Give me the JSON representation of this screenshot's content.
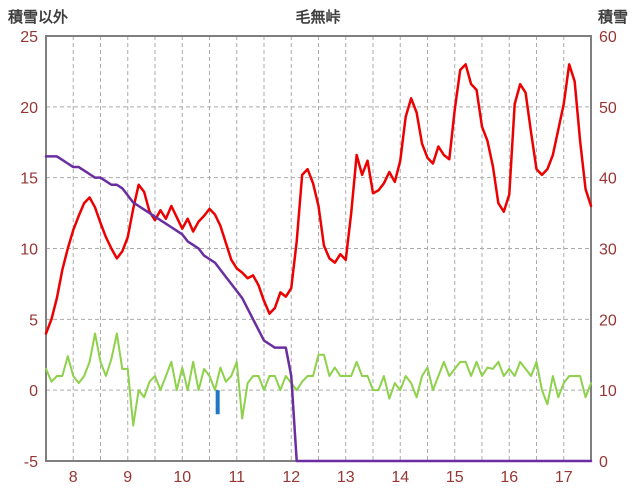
{
  "page": {
    "title": "毛無峠"
  },
  "chart_data": {
    "type": "line",
    "title": "毛無峠",
    "left_axis": {
      "label": "積雪以外",
      "min": -5,
      "max": 25,
      "ticks": [
        25,
        20,
        15,
        10,
        5,
        0,
        -5
      ]
    },
    "right_axis": {
      "label": "積雪",
      "min": 0,
      "max": 60,
      "ticks": [
        60,
        50,
        40,
        30,
        20,
        10,
        0
      ]
    },
    "x_range": [
      7.5,
      17.5
    ],
    "x_step": 0.1,
    "x_ticks": [
      8,
      9,
      10,
      11,
      12,
      13,
      14,
      15,
      16,
      17
    ],
    "x_grid_step": 0.5,
    "grid": "dashed",
    "legend": "none",
    "series": [
      {
        "name": "green",
        "axis": "left",
        "color": "#8ed14b",
        "width": 2,
        "y": [
          1.5,
          0.6,
          1.0,
          1.0,
          2.4,
          1.0,
          0.5,
          1.0,
          2.0,
          4.0,
          2.0,
          1.0,
          2.2,
          4.0,
          1.5,
          1.5,
          -2.5,
          0.0,
          -0.5,
          0.6,
          1.0,
          0.0,
          1.0,
          2.0,
          0.0,
          1.6,
          0.0,
          2.0,
          0.0,
          1.5,
          1.0,
          0.0,
          1.6,
          0.6,
          1.0,
          2.0,
          -2.0,
          0.5,
          1.0,
          1.0,
          0.0,
          1.0,
          1.0,
          0.0,
          1.0,
          0.5,
          0.0,
          0.6,
          1.0,
          1.0,
          2.5,
          2.5,
          1.0,
          1.6,
          1.0,
          1.0,
          1.0,
          2.0,
          1.0,
          1.0,
          0.0,
          0.0,
          1.0,
          -0.6,
          0.5,
          0.0,
          1.0,
          0.5,
          -0.5,
          1.0,
          1.6,
          0.0,
          1.0,
          2.0,
          1.0,
          1.5,
          2.0,
          2.0,
          1.0,
          2.0,
          1.0,
          1.6,
          1.5,
          2.0,
          1.0,
          1.5,
          1.0,
          2.0,
          1.5,
          1.0,
          2.0,
          0.0,
          -1.0,
          1.0,
          -0.5,
          0.5,
          1.0,
          1.0,
          1.0,
          -0.5,
          0.5
        ]
      },
      {
        "name": "red",
        "axis": "left",
        "color": "#ec0000",
        "width": 2.5,
        "y": [
          4.0,
          5.0,
          6.5,
          8.5,
          10.0,
          11.3,
          12.3,
          13.2,
          13.6,
          12.9,
          11.8,
          10.8,
          10.0,
          9.3,
          9.8,
          10.8,
          12.8,
          14.5,
          14.0,
          12.6,
          12.0,
          12.7,
          12.1,
          13.0,
          12.2,
          11.4,
          12.1,
          11.2,
          11.9,
          12.3,
          12.8,
          12.4,
          11.6,
          10.4,
          9.2,
          8.6,
          8.3,
          7.9,
          8.1,
          7.4,
          6.3,
          5.4,
          5.8,
          6.9,
          6.6,
          7.2,
          10.5,
          15.2,
          15.6,
          14.6,
          13.0,
          10.2,
          9.3,
          9.0,
          9.6,
          9.2,
          12.5,
          16.6,
          15.2,
          16.2,
          13.9,
          14.1,
          14.6,
          15.4,
          14.7,
          16.2,
          19.3,
          20.6,
          19.6,
          17.4,
          16.4,
          16.0,
          17.2,
          16.6,
          16.3,
          19.8,
          22.6,
          23.0,
          21.6,
          21.2,
          18.6,
          17.6,
          15.8,
          13.2,
          12.6,
          13.8,
          20.2,
          21.6,
          21.0,
          18.2,
          15.6,
          15.2,
          15.6,
          16.6,
          18.4,
          20.2,
          23.0,
          21.8,
          17.6,
          14.2,
          13.0
        ]
      },
      {
        "name": "purple-snow",
        "axis": "right",
        "color": "#6a2ea0",
        "width": 2.5,
        "y": [
          43,
          43,
          43,
          42.5,
          42,
          41.5,
          41.5,
          41,
          40.5,
          40,
          40,
          39.5,
          39,
          39,
          38.5,
          37.5,
          36.5,
          36,
          35.5,
          35,
          34.5,
          34,
          33.5,
          33,
          32.5,
          32,
          31,
          30.5,
          30,
          29,
          28.5,
          28,
          27,
          26,
          25,
          24,
          23,
          21.5,
          20,
          18.5,
          17,
          16.5,
          16,
          16,
          16,
          12,
          0,
          0,
          0,
          0,
          0,
          0,
          0,
          0,
          0,
          0,
          0,
          0,
          0,
          0,
          0,
          0,
          0,
          0,
          0,
          0,
          0,
          0,
          0,
          0,
          0,
          0,
          0,
          0,
          0,
          0,
          0,
          0,
          0,
          0,
          0,
          0,
          0,
          0,
          0,
          0,
          0,
          0,
          0,
          0,
          0,
          0,
          0,
          0,
          0,
          0,
          0,
          0,
          0,
          0,
          0
        ]
      }
    ],
    "bars": [
      {
        "x": 10.65,
        "y_top": 0,
        "y_bottom": -1.7,
        "axis": "left"
      }
    ]
  },
  "colors": {
    "red_line": "#ec0000",
    "snow_line": "#6a2ea0",
    "green_line": "#8ed14b",
    "precip_bar": "#1f77c8",
    "grid": "#ababab",
    "frame": "#7f7f7f",
    "tick_label": "#963634",
    "header_text": "#3f3f3f",
    "background": "#ffffff"
  }
}
